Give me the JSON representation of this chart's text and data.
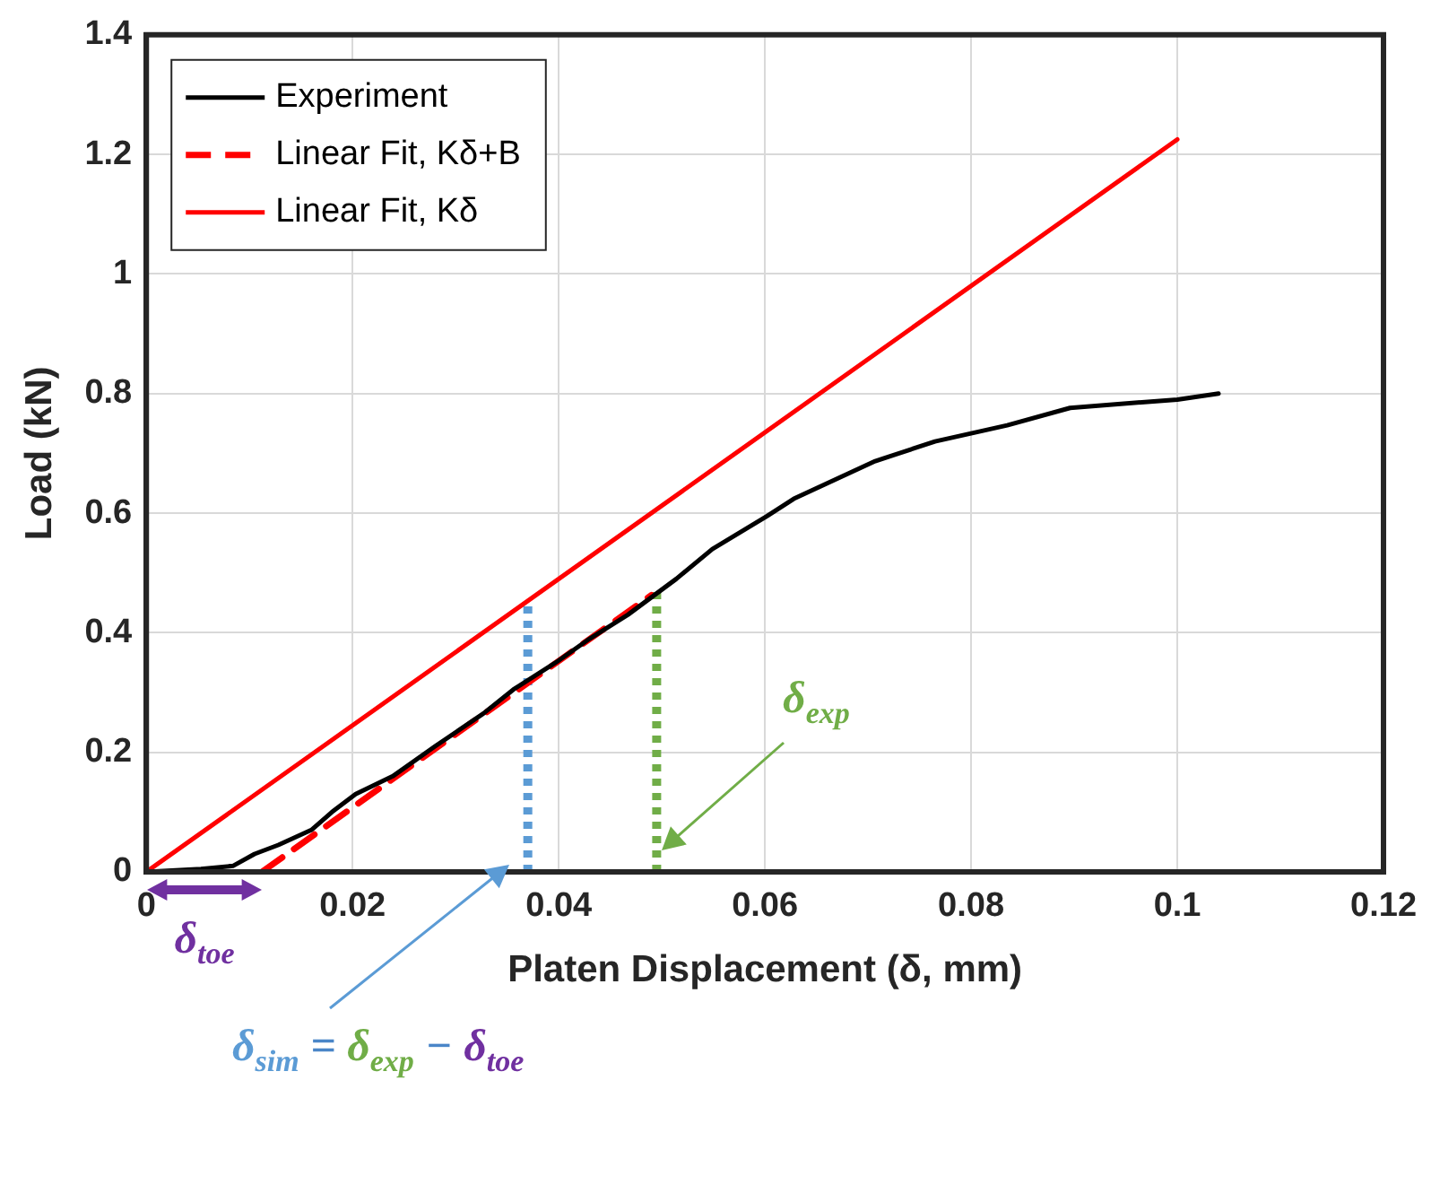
{
  "chart_data": {
    "type": "line",
    "xlabel": "Platen Displacement (δ, mm)",
    "ylabel": "Load (kN)",
    "xlim": [
      0,
      0.12
    ],
    "xticks": [
      0,
      0.02,
      0.04,
      0.06,
      0.08,
      0.1,
      0.12
    ],
    "ylim": [
      0,
      1.4
    ],
    "yticks": [
      0,
      0.2,
      0.4,
      0.6,
      0.8,
      1,
      1.2,
      1.4
    ],
    "grid": true,
    "legend": "top left",
    "marker": "none",
    "series": [
      {
        "name": "Experiment",
        "color": "#000000",
        "line_style": "solid",
        "x": [
          0,
          0.0053,
          0.0084,
          0.0105,
          0.0128,
          0.016,
          0.018,
          0.0203,
          0.0239,
          0.028,
          0.0327,
          0.0356,
          0.0397,
          0.043,
          0.0467,
          0.0514,
          0.0549,
          0.0602,
          0.0628,
          0.0707,
          0.0765,
          0.0835,
          0.0896,
          0.1,
          0.104
        ],
        "values": [
          0,
          0.005,
          0.01,
          0.03,
          0.045,
          0.07,
          0.1,
          0.13,
          0.16,
          0.21,
          0.265,
          0.305,
          0.35,
          0.39,
          0.43,
          0.49,
          0.54,
          0.595,
          0.624,
          0.687,
          0.72,
          0.747,
          0.776,
          0.79,
          0.8
        ]
      },
      {
        "name": "Linear Fit, Kδ+B",
        "color": "#ff0000",
        "line_style": "dashed",
        "x": [
          0.0112,
          0.049
        ],
        "values": [
          0,
          0.463
        ]
      },
      {
        "name": "Linear Fit, Kδ",
        "color": "#ff0000",
        "line_style": "solid",
        "x": [
          0,
          0.1
        ],
        "values": [
          0,
          1.225
        ]
      },
      {
        "color": "#5b9bd5",
        "line_style": "dotted",
        "x": [
          0.037,
          0.037
        ],
        "values": [
          0,
          0.45
        ]
      },
      {
        "color": "#70ad47",
        "line_style": "dotted",
        "x": [
          0.0495,
          0.0495
        ],
        "values": [
          0,
          0.47
        ]
      }
    ],
    "annotations": [
      "δ$_{exp}$",
      "δ$_{toe}$",
      "δ$_{sim}$ = δ$_{exp}$ − δ$_{toe}$"
    ]
  }
}
